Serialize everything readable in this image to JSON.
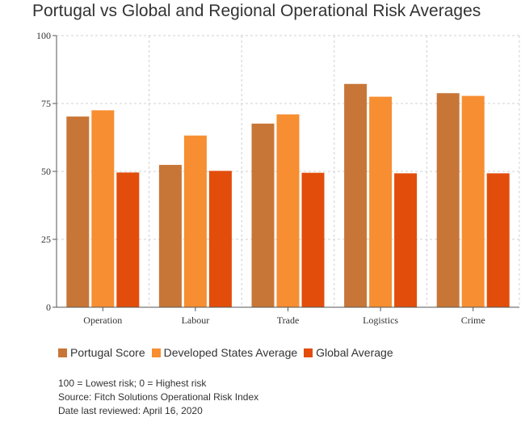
{
  "title": "Portugal vs Global and Regional Operational Risk Averages",
  "chart_data": {
    "type": "bar",
    "categories": [
      "Operation",
      "Labour",
      "Trade",
      "Logistics",
      "Crime"
    ],
    "series": [
      {
        "name": "Portugal Score",
        "color": "#c87637",
        "values": [
          70.2,
          52.4,
          67.6,
          82.2,
          78.8
        ]
      },
      {
        "name": "Developed States Average",
        "color": "#f78e31",
        "values": [
          72.5,
          63.2,
          71.0,
          77.5,
          77.8
        ]
      },
      {
        "name": "Global Average",
        "color": "#e24d0b",
        "values": [
          49.6,
          50.2,
          49.5,
          49.3,
          49.3
        ]
      }
    ],
    "yticks": [
      0,
      25,
      50,
      75,
      100
    ],
    "ylim": [
      0,
      100
    ],
    "grid": true,
    "legend_position": "bottom-left"
  },
  "notes": [
    "100 = Lowest risk; 0 = Highest risk",
    "Source: Fitch Solutions Operational Risk Index",
    "Date last reviewed: April 16, 2020"
  ]
}
